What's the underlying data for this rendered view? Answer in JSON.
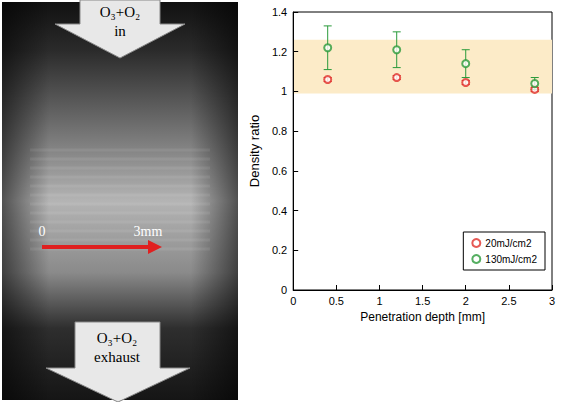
{
  "figure": {
    "inlet": {
      "lines": [
        "O₃+O₂",
        "in"
      ]
    },
    "outlet": {
      "lines": [
        "O₃+O₂",
        "exhaust"
      ]
    },
    "scale": {
      "start": "0",
      "end": "3mm"
    }
  },
  "chart_data": {
    "type": "scatter",
    "x_label": "Penetration depth [mm]",
    "y_label": "Density ratio",
    "xlim": [
      0,
      3
    ],
    "xticks": [
      0,
      0.5,
      1,
      1.5,
      2,
      2.5,
      3
    ],
    "ylim": [
      0,
      1.4
    ],
    "yticks": [
      0,
      0.2,
      0.4,
      0.6,
      0.8,
      1,
      1.2,
      1.4
    ],
    "grid": false,
    "legend": "lower right",
    "band": {
      "range": [
        0.99,
        1.26
      ],
      "color": "#fcebc8"
    },
    "series": [
      {
        "name": "20mJ/cm2",
        "color": "#e0302a",
        "marker": "open_circle",
        "x": [
          0.4,
          1.2,
          2.0,
          2.8
        ],
        "values": [
          1.06,
          1.07,
          1.045,
          1.01
        ],
        "errors": [
          0.01,
          0.01,
          0.01,
          0.01
        ]
      },
      {
        "name": "130mJ/cm2",
        "color": "#2a9a3a",
        "marker": "open_circle",
        "x": [
          0.4,
          1.2,
          2.0,
          2.8
        ],
        "values": [
          1.22,
          1.21,
          1.14,
          1.04
        ],
        "errors": [
          0.11,
          0.09,
          0.07,
          0.03
        ]
      }
    ]
  }
}
